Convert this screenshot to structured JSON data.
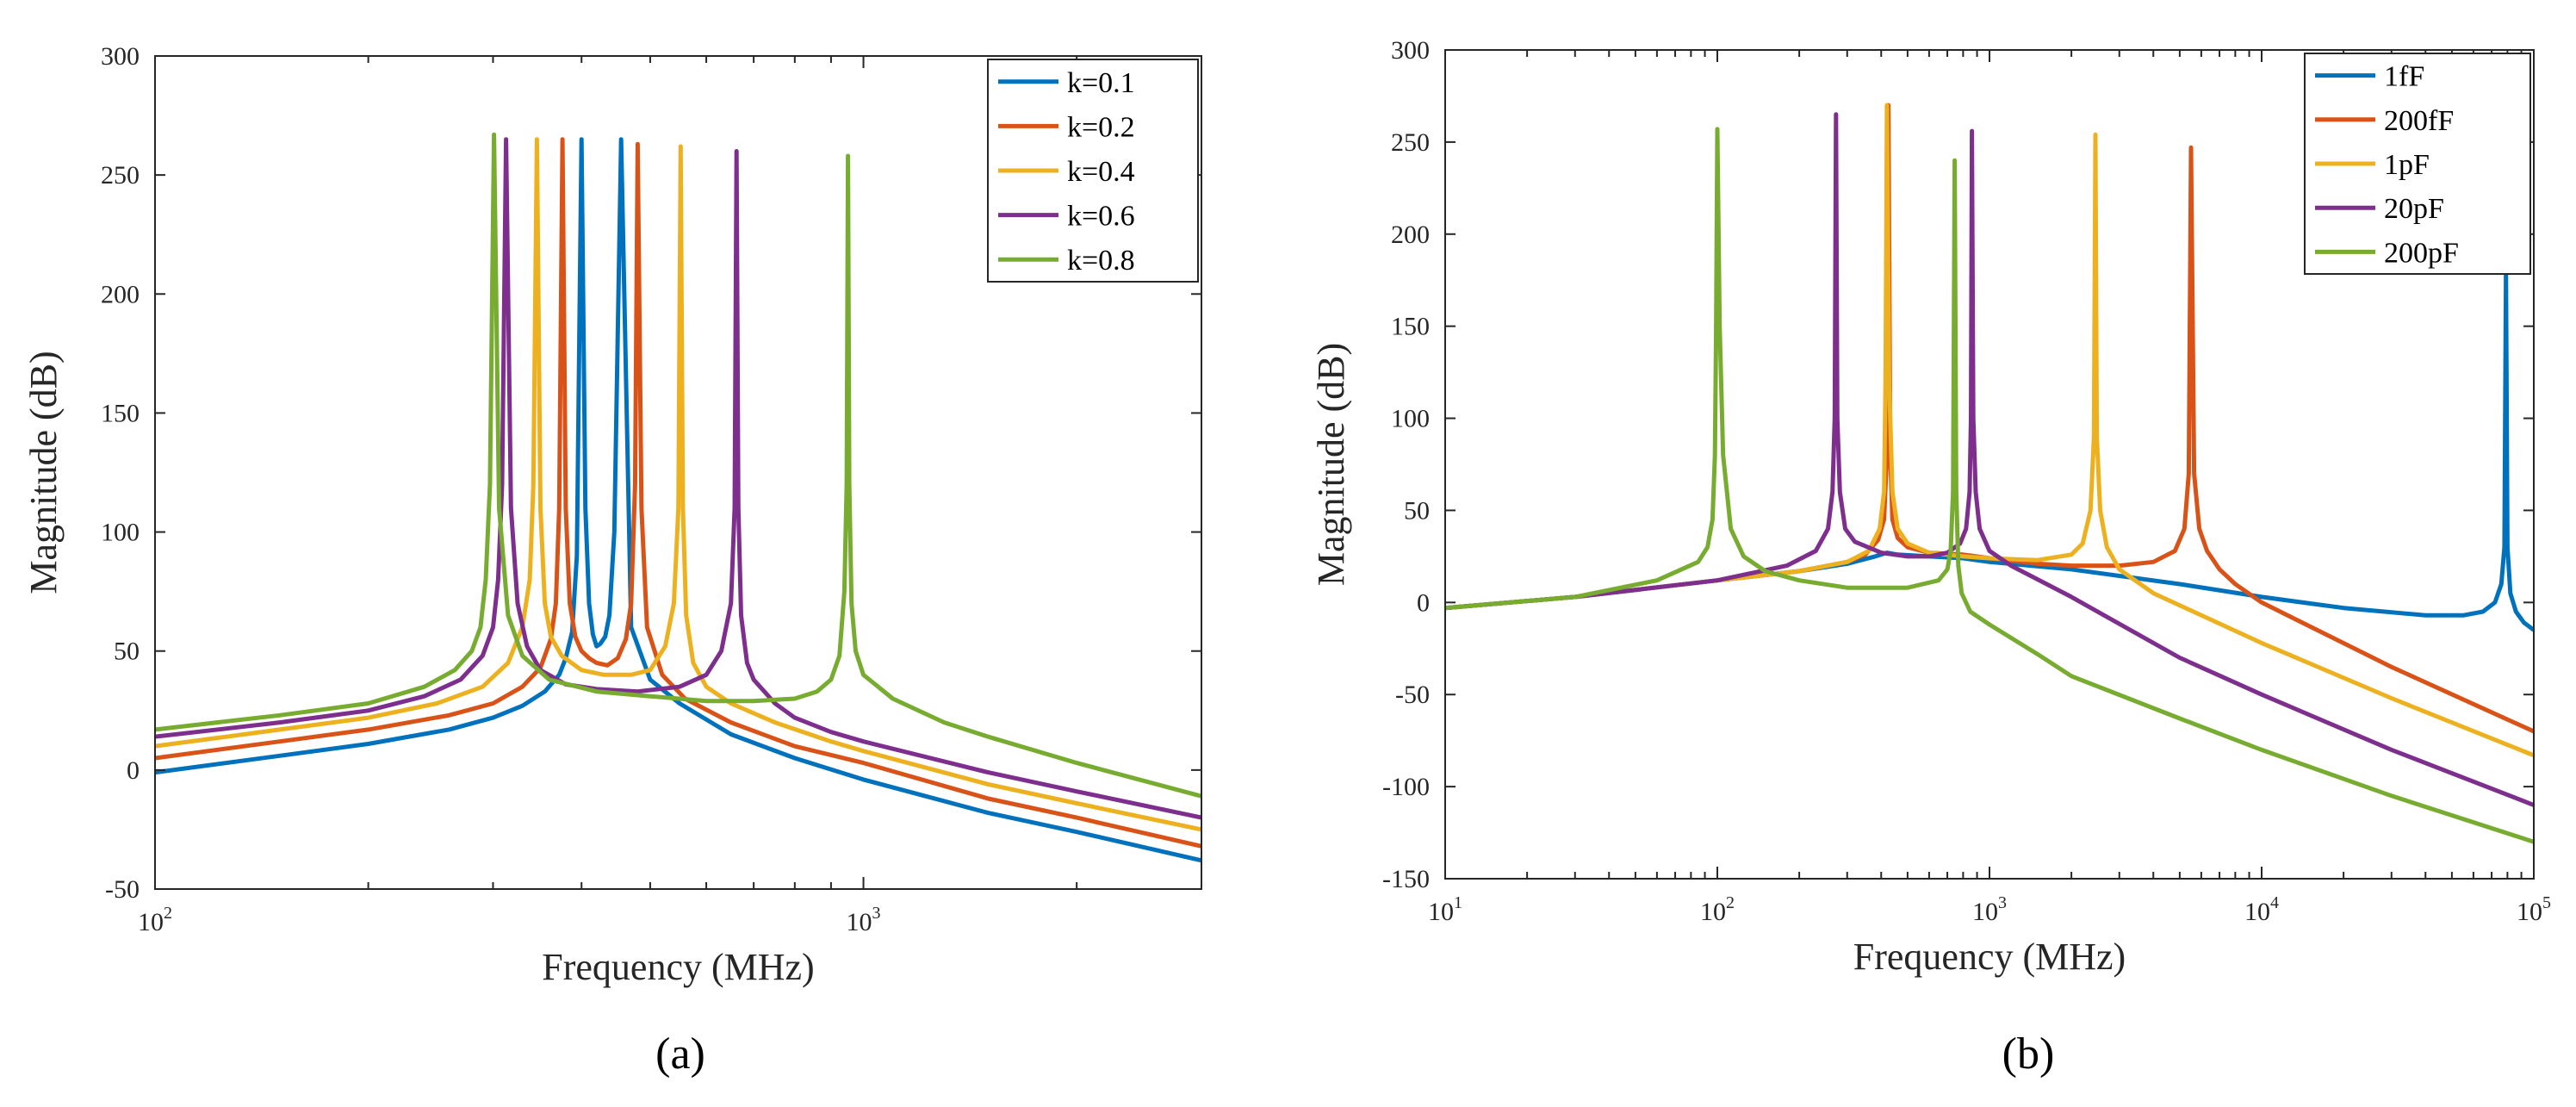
{
  "chart_data": [
    {
      "type": "line",
      "caption": "(a)",
      "xscale": "log",
      "xlabel": "Frequency (MHz)",
      "ylabel": "Magnitude (dB)",
      "xlim": [
        100,
        3000
      ],
      "ylim": [
        -50,
        300
      ],
      "yticks": [
        -50,
        0,
        50,
        100,
        150,
        200,
        250,
        300
      ],
      "xticks": [
        {
          "base": "10",
          "exp": "2",
          "value": 100
        },
        {
          "base": "10",
          "exp": "3",
          "value": 1000
        }
      ],
      "legend_position": "top-right",
      "series": [
        {
          "name": "k=0.1",
          "color": "#0072BD",
          "x": [
            100,
            150,
            200,
            260,
            300,
            330,
            355,
            372,
            380,
            388,
            394,
            400,
            405,
            410,
            415,
            420,
            425,
            432,
            438,
            445,
            455,
            470,
            500,
            550,
            650,
            800,
            1000,
            1500,
            2000,
            3000
          ],
          "y": [
            -1,
            6,
            11,
            17,
            22,
            27,
            33,
            40,
            47,
            58,
            90,
            265,
            110,
            70,
            57,
            52,
            53,
            56,
            65,
            100,
            265,
            60,
            38,
            28,
            15,
            5,
            -4,
            -18,
            -26,
            -38
          ]
        },
        {
          "name": "k=0.2",
          "color": "#D95319",
          "x": [
            100,
            150,
            200,
            260,
            300,
            330,
            350,
            362,
            368,
            372,
            376,
            380,
            385,
            392,
            400,
            410,
            420,
            435,
            450,
            462,
            470,
            476,
            480,
            486,
            495,
            520,
            560,
            650,
            800,
            1000,
            1500,
            2000,
            3000
          ],
          "y": [
            5,
            12,
            17,
            23,
            28,
            35,
            43,
            55,
            70,
            110,
            265,
            110,
            70,
            56,
            50,
            47,
            45,
            44,
            47,
            55,
            70,
            120,
            263,
            110,
            60,
            40,
            30,
            20,
            10,
            3,
            -12,
            -20,
            -32
          ]
        },
        {
          "name": "k=0.4",
          "color": "#EDB120",
          "x": [
            100,
            150,
            200,
            250,
            290,
            315,
            330,
            338,
            342,
            346,
            350,
            355,
            362,
            375,
            400,
            430,
            470,
            500,
            525,
            540,
            548,
            552,
            556,
            562,
            575,
            600,
            650,
            750,
            900,
            1000,
            1500,
            2000,
            3000
          ],
          "y": [
            10,
            17,
            22,
            28,
            35,
            45,
            60,
            80,
            120,
            265,
            110,
            70,
            56,
            48,
            42,
            40,
            40,
            42,
            52,
            70,
            110,
            262,
            110,
            65,
            45,
            35,
            28,
            20,
            12,
            8,
            -6,
            -14,
            -25
          ]
        },
        {
          "name": "k=0.6",
          "color": "#7E2F8E",
          "x": [
            100,
            150,
            200,
            240,
            270,
            290,
            300,
            305,
            309,
            313,
            318,
            325,
            335,
            350,
            380,
            420,
            480,
            550,
            600,
            630,
            650,
            658,
            662,
            666,
            672,
            685,
            700,
            750,
            800,
            900,
            1000,
            1500,
            2000,
            3000
          ],
          "y": [
            14,
            20,
            25,
            31,
            38,
            48,
            60,
            80,
            120,
            265,
            110,
            70,
            52,
            42,
            36,
            34,
            33,
            35,
            40,
            50,
            70,
            110,
            260,
            110,
            65,
            45,
            38,
            28,
            22,
            16,
            12,
            -1,
            -9,
            -20
          ]
        },
        {
          "name": "k=0.8",
          "color": "#77AC30",
          "x": [
            100,
            150,
            200,
            240,
            265,
            280,
            288,
            293,
            297,
            301,
            306,
            315,
            330,
            360,
            420,
            500,
            600,
            700,
            800,
            860,
            900,
            925,
            940,
            947,
            951,
            955,
            962,
            975,
            1000,
            1100,
            1300,
            1500,
            2000,
            3000
          ],
          "y": [
            17,
            23,
            28,
            35,
            42,
            50,
            60,
            80,
            120,
            267,
            110,
            65,
            48,
            38,
            33,
            31,
            29,
            29,
            30,
            33,
            38,
            48,
            75,
            120,
            258,
            120,
            70,
            50,
            40,
            30,
            20,
            14,
            3,
            -11
          ]
        }
      ]
    },
    {
      "type": "line",
      "caption": "(b)",
      "xscale": "log",
      "xlabel": "Frequency (MHz)",
      "ylabel": "Magnitude (dB)",
      "xlim": [
        10,
        100000
      ],
      "ylim": [
        -150,
        300
      ],
      "yticks": [
        -150,
        -100,
        -50,
        0,
        50,
        100,
        150,
        200,
        250,
        300
      ],
      "xticks": [
        {
          "base": "10",
          "exp": "1",
          "value": 10
        },
        {
          "base": "10",
          "exp": "2",
          "value": 100
        },
        {
          "base": "10",
          "exp": "3",
          "value": 1000
        },
        {
          "base": "10",
          "exp": "4",
          "value": 10000
        },
        {
          "base": "10",
          "exp": "5",
          "value": 100000
        }
      ],
      "legend_position": "top-right",
      "series": [
        {
          "name": "1fF",
          "color": "#0072BD",
          "x": [
            10,
            30,
            100,
            200,
            300,
            380,
            420,
            460,
            600,
            800,
            1000,
            2000,
            5000,
            10000,
            20000,
            40000,
            55000,
            65000,
            72000,
            76000,
            78000,
            79000,
            80000,
            82000,
            86000,
            92000,
            100000
          ],
          "y": [
            -3,
            3,
            12,
            17,
            21,
            25,
            27,
            26,
            25,
            24,
            22,
            18,
            10,
            3,
            -3,
            -7,
            -7,
            -5,
            0,
            10,
            30,
            180,
            30,
            5,
            -5,
            -11,
            -15
          ]
        },
        {
          "name": "200fF",
          "color": "#D95319",
          "x": [
            10,
            30,
            100,
            200,
            300,
            350,
            390,
            410,
            420,
            425,
            432,
            440,
            460,
            500,
            600,
            800,
            1000,
            1500,
            2000,
            3000,
            4000,
            4800,
            5200,
            5400,
            5500,
            5650,
            5900,
            6300,
            7000,
            8000,
            10000,
            30000,
            100000
          ],
          "y": [
            -3,
            3,
            12,
            17,
            22,
            26,
            34,
            45,
            80,
            270,
            80,
            45,
            35,
            30,
            27,
            26,
            24,
            21,
            20,
            20,
            22,
            28,
            40,
            70,
            247,
            70,
            40,
            28,
            18,
            10,
            0,
            -35,
            -70
          ]
        },
        {
          "name": "1pF",
          "color": "#EDB120",
          "x": [
            10,
            30,
            100,
            200,
            300,
            360,
            395,
            410,
            415,
            420,
            428,
            440,
            460,
            500,
            600,
            800,
            1000,
            1500,
            2000,
            2200,
            2350,
            2420,
            2450,
            2480,
            2550,
            2700,
            3000,
            4000,
            10000,
            30000,
            100000
          ],
          "y": [
            -3,
            3,
            12,
            17,
            22,
            28,
            40,
            60,
            120,
            270,
            120,
            60,
            40,
            32,
            27,
            25,
            24,
            23,
            26,
            32,
            50,
            90,
            254,
            90,
            50,
            30,
            18,
            5,
            -22,
            -52,
            -83
          ]
        },
        {
          "name": "20pF",
          "color": "#7E2F8E",
          "x": [
            10,
            30,
            100,
            180,
            230,
            255,
            265,
            270,
            273,
            276,
            282,
            295,
            320,
            400,
            500,
            600,
            700,
            780,
            820,
            845,
            855,
            862,
            872,
            890,
            920,
            1000,
            1200,
            2000,
            5000,
            10000,
            30000,
            100000
          ],
          "y": [
            -3,
            3,
            12,
            20,
            28,
            40,
            60,
            100,
            265,
            100,
            60,
            40,
            33,
            27,
            25,
            25,
            27,
            32,
            40,
            60,
            100,
            256,
            100,
            60,
            40,
            28,
            20,
            3,
            -30,
            -50,
            -80,
            -110
          ]
        },
        {
          "name": "200pF",
          "color": "#77AC30",
          "x": [
            10,
            30,
            60,
            85,
            92,
            96,
            98,
            99,
            100,
            102,
            105,
            112,
            125,
            150,
            200,
            300,
            500,
            650,
            700,
            720,
            735,
            745,
            755,
            768,
            790,
            850,
            1000,
            1500,
            2000,
            5000,
            10000,
            30000,
            100000
          ],
          "y": [
            -3,
            3,
            12,
            22,
            30,
            45,
            80,
            150,
            257,
            150,
            80,
            40,
            25,
            17,
            12,
            8,
            8,
            12,
            18,
            28,
            60,
            240,
            60,
            20,
            5,
            -5,
            -12,
            -28,
            -40,
            -63,
            -80,
            -105,
            -130
          ]
        }
      ]
    }
  ]
}
